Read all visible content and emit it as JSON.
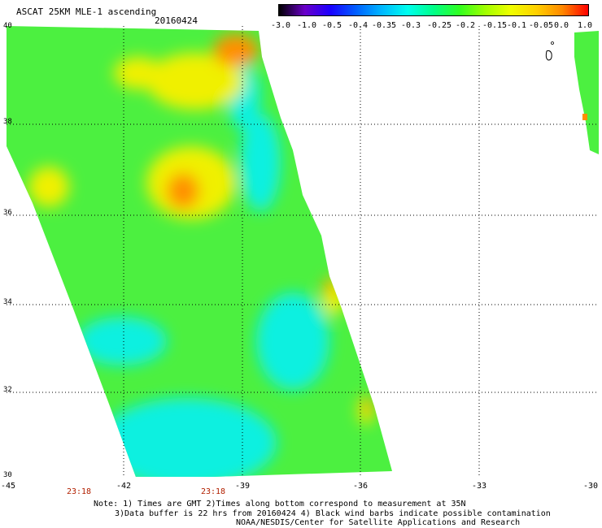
{
  "header": {
    "title": "ASCAT 25KM MLE-1 ascending",
    "date": "20160424"
  },
  "colorbar": {
    "labels": [
      "-3.0",
      "-1.0",
      "-0.5",
      "-0.4",
      "-0.35",
      "-0.3",
      "-0.25",
      "-0.2",
      "-0.15",
      "-0.1",
      "-0.05",
      "0.0",
      "1.0"
    ],
    "colors": [
      "#000000",
      "#6a00c8",
      "#1a00ff",
      "#0060ff",
      "#00b8ff",
      "#00ffee",
      "#00ff88",
      "#30ff20",
      "#a0ff00",
      "#f0ff00",
      "#ffd000",
      "#ff8800",
      "#ff0000"
    ]
  },
  "axes": {
    "lat_labels": [
      "40",
      "38",
      "36",
      "34",
      "32",
      "30"
    ],
    "lon_labels": [
      "-45",
      "-42",
      "-39",
      "-36",
      "-33",
      "-30"
    ],
    "time_labels": [
      "23:18",
      "23:18"
    ]
  },
  "notes": {
    "line1": "Note: 1) Times are GMT 2)Times along bottom correspond to measurement at 35N",
    "line2": "3)Data buffer is 22 hrs from 20160424 4) Black wind barbs indicate possible contamination",
    "line3": "NOAA/NESDIS/Center for Satellite Applications and Research"
  },
  "map": {
    "lat_range": [
      30,
      40
    ],
    "lon_range": [
      -45,
      -30
    ],
    "swath_color_main": "#4cf040",
    "swath_color_low": "#10f0e0",
    "swath_color_high": "#f0f000",
    "swath_color_peak": "#ff9000"
  }
}
